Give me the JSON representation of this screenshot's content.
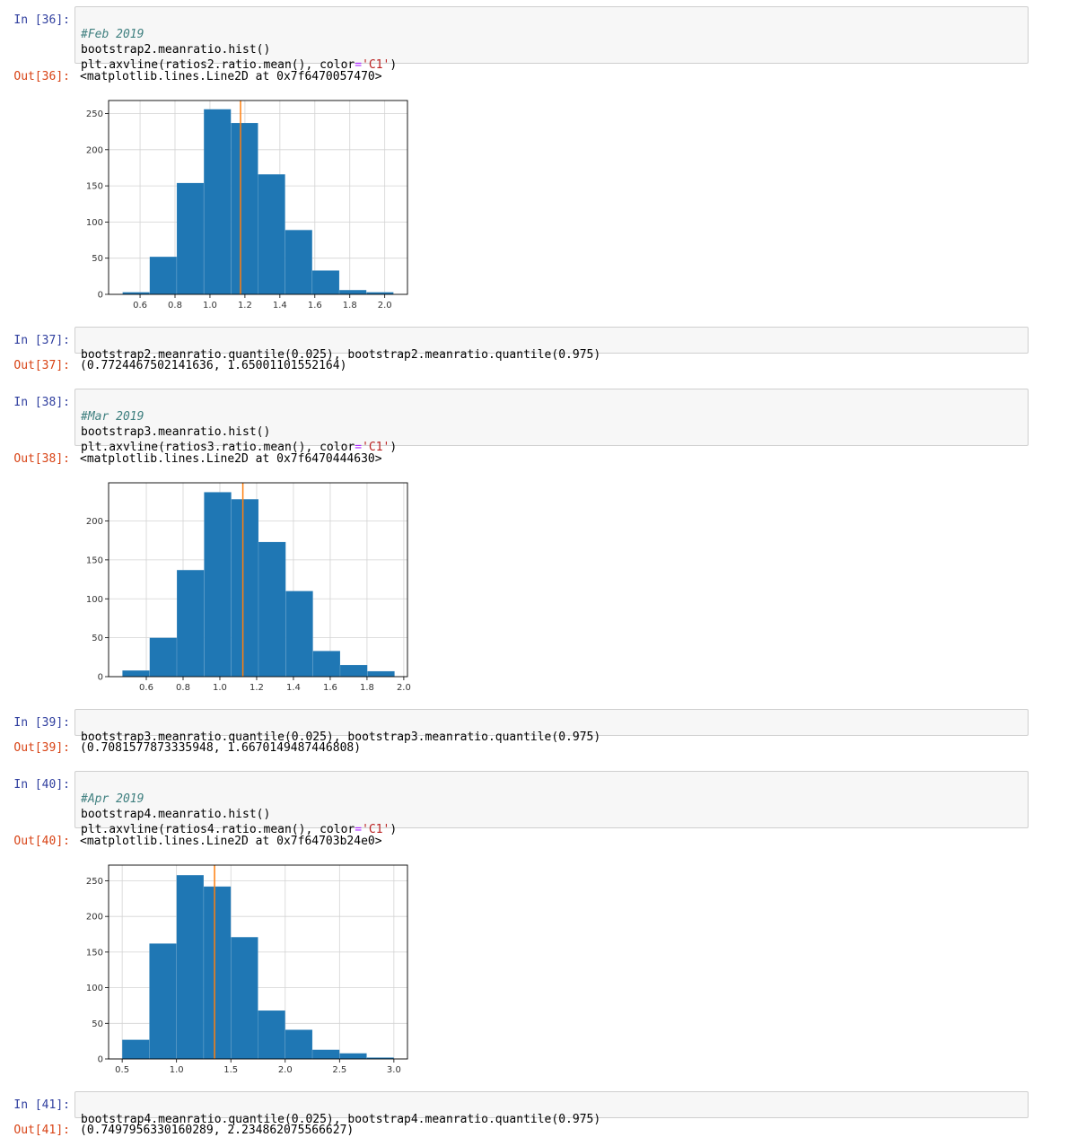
{
  "cells": [
    {
      "in_prompt": "In [36]:",
      "comment": "#Feb 2019",
      "line2": "bootstrap2.meanratio.hist()",
      "line3_pre": "plt.axvline(ratios2.ratio.mean(), color",
      "line3_eq": "=",
      "line3_str": "'C1'",
      "line3_post": ")",
      "out_prompt": "Out[36]:",
      "out_text": "<matplotlib.lines.Line2D at 0x7f6470057470>"
    },
    {
      "in_prompt": "In [37]:",
      "code": "bootstrap2.meanratio.quantile(0.025), bootstrap2.meanratio.quantile(0.975)",
      "out_prompt": "Out[37]:",
      "out_text": "(0.7724467502141636, 1.65001101552164)"
    },
    {
      "in_prompt": "In [38]:",
      "comment": "#Mar 2019",
      "line2": "bootstrap3.meanratio.hist()",
      "line3_pre": "plt.axvline(ratios3.ratio.mean(), color",
      "line3_eq": "=",
      "line3_str": "'C1'",
      "line3_post": ")",
      "out_prompt": "Out[38]:",
      "out_text": "<matplotlib.lines.Line2D at 0x7f6470444630>"
    },
    {
      "in_prompt": "In [39]:",
      "code": "bootstrap3.meanratio.quantile(0.025), bootstrap3.meanratio.quantile(0.975)",
      "out_prompt": "Out[39]:",
      "out_text": "(0.7081577873335948, 1.6670149487446808)"
    },
    {
      "in_prompt": "In [40]:",
      "comment": "#Apr 2019",
      "line2": "bootstrap4.meanratio.hist()",
      "line3_pre": "plt.axvline(ratios4.ratio.mean(), color",
      "line3_eq": "=",
      "line3_str": "'C1'",
      "line3_post": ")",
      "out_prompt": "Out[40]:",
      "out_text": "<matplotlib.lines.Line2D at 0x7f64703b24e0>"
    },
    {
      "in_prompt": "In [41]:",
      "code": "bootstrap4.meanratio.quantile(0.025), bootstrap4.meanratio.quantile(0.975)",
      "out_prompt": "Out[41]:",
      "out_text": "(0.7497956330160289, 2.234862075566627)"
    }
  ],
  "colors": {
    "bar": "#1f77b4",
    "mean_line": "#ff7f0e",
    "grid": "#d3d3d3"
  },
  "chart_data": [
    {
      "type": "bar",
      "bin_edges": [
        0.5,
        0.655,
        0.81,
        0.965,
        1.12,
        1.275,
        1.43,
        1.585,
        1.74,
        1.895,
        2.05
      ],
      "values": [
        3,
        52,
        154,
        256,
        237,
        166,
        89,
        33,
        6,
        3
      ],
      "mean_line": 1.175,
      "xticks": [
        0.6,
        0.8,
        1.0,
        1.2,
        1.4,
        1.6,
        1.8,
        2.0
      ],
      "xtick_labels": [
        "0.6",
        "0.8",
        "1.0",
        "1.2",
        "1.4",
        "1.6",
        "1.8",
        "2.0"
      ],
      "yticks": [
        0,
        50,
        100,
        150,
        200,
        250
      ],
      "ytick_labels": [
        "0",
        "50",
        "100",
        "150",
        "200",
        "250"
      ],
      "xlim": [
        0.42,
        2.13
      ],
      "ylim": [
        0,
        268
      ],
      "grid": true
    },
    {
      "type": "bar",
      "bin_edges": [
        0.47,
        0.618,
        0.766,
        0.914,
        1.062,
        1.21,
        1.358,
        1.506,
        1.654,
        1.802,
        1.95
      ],
      "values": [
        8,
        50,
        137,
        237,
        228,
        173,
        110,
        33,
        15,
        7
      ],
      "mean_line": 1.125,
      "xticks": [
        0.6,
        0.8,
        1.0,
        1.2,
        1.4,
        1.6,
        1.8,
        2.0
      ],
      "xtick_labels": [
        "0.6",
        "0.8",
        "1.0",
        "1.2",
        "1.4",
        "1.6",
        "1.8",
        "2.0"
      ],
      "yticks": [
        0,
        50,
        100,
        150,
        200
      ],
      "ytick_labels": [
        "0",
        "50",
        "100",
        "150",
        "200"
      ],
      "xlim": [
        0.395,
        2.02
      ],
      "ylim": [
        0,
        249
      ],
      "grid": true
    },
    {
      "type": "bar",
      "bin_edges": [
        0.5,
        0.75,
        1.0,
        1.25,
        1.5,
        1.75,
        2.0,
        2.25,
        2.5,
        2.75,
        3.0
      ],
      "values": [
        27,
        162,
        258,
        242,
        171,
        68,
        41,
        13,
        8,
        2
      ],
      "mean_line": 1.35,
      "xticks": [
        0.5,
        1.0,
        1.5,
        2.0,
        2.5,
        3.0
      ],
      "xtick_labels": [
        "0.5",
        "1.0",
        "1.5",
        "2.0",
        "2.5",
        "3.0"
      ],
      "yticks": [
        0,
        50,
        100,
        150,
        200,
        250
      ],
      "ytick_labels": [
        "0",
        "50",
        "100",
        "150",
        "200",
        "250"
      ],
      "xlim": [
        0.375,
        3.125
      ],
      "ylim": [
        0,
        272
      ],
      "grid": true
    }
  ]
}
